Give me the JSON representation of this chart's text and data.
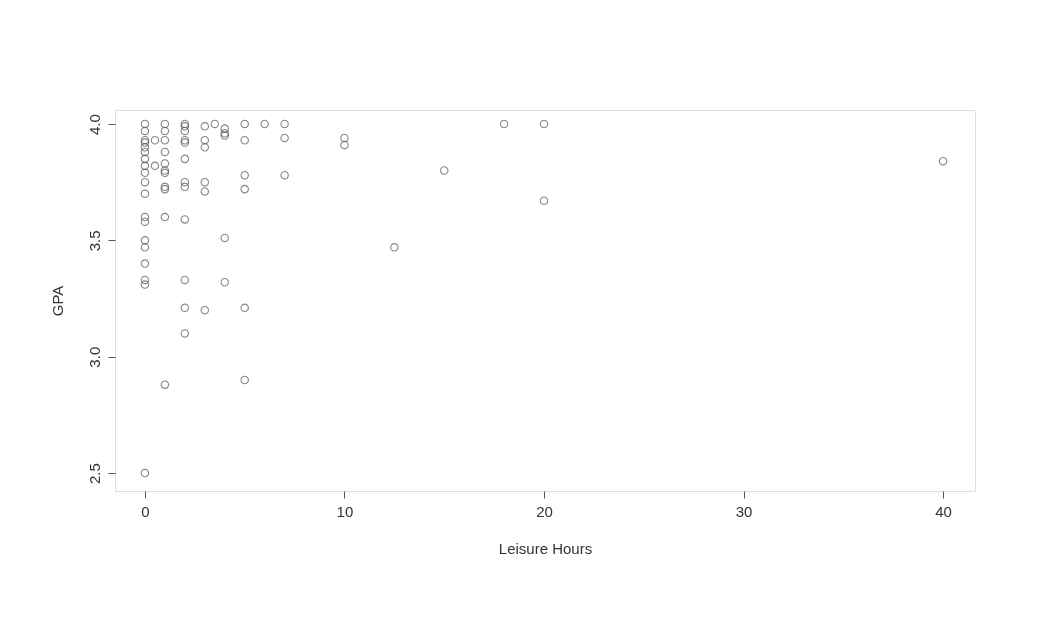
{
  "chart_data": {
    "type": "scatter",
    "xlabel": "Leisure Hours",
    "ylabel": "GPA",
    "marker": "circle",
    "grid": false,
    "legend": false,
    "xlim": [
      -1.5,
      41.6
    ],
    "ylim": [
      2.423,
      4.06
    ],
    "xticks": [
      0,
      10,
      20,
      30,
      40
    ],
    "yticks": [
      2.5,
      {
        "value": 3,
        "label": "3.0"
      },
      3.5,
      {
        "value": 4,
        "label": "4.0"
      }
    ],
    "series": [
      {
        "color": "#555555",
        "x": [
          0,
          0,
          0,
          0,
          0,
          0,
          0,
          0,
          0,
          0,
          0,
          0,
          0,
          0,
          0,
          0,
          0,
          0,
          0,
          0.5,
          0.5,
          1,
          1,
          1,
          1,
          1,
          1,
          1,
          1,
          1,
          1,
          1,
          2,
          2,
          2,
          2,
          2,
          2,
          2,
          2,
          2,
          2,
          2,
          2,
          3,
          3,
          3,
          3,
          3,
          3,
          3.5,
          4,
          4,
          4,
          4,
          4,
          5,
          5,
          5,
          5,
          5,
          5,
          6,
          7,
          7,
          7,
          10,
          10,
          12.5,
          15,
          18,
          20,
          20,
          40
        ],
        "values": [
          4.0,
          3.97,
          3.93,
          3.92,
          3.9,
          3.88,
          3.85,
          3.82,
          3.79,
          3.75,
          3.7,
          3.6,
          3.58,
          3.5,
          3.47,
          3.4,
          3.33,
          3.31,
          2.5,
          3.93,
          3.82,
          4.0,
          3.97,
          3.93,
          3.88,
          3.83,
          3.8,
          3.79,
          3.73,
          3.72,
          3.6,
          2.88,
          4.0,
          3.99,
          3.97,
          3.93,
          3.92,
          3.85,
          3.75,
          3.73,
          3.59,
          3.33,
          3.21,
          3.1,
          3.99,
          3.93,
          3.9,
          3.75,
          3.71,
          3.2,
          4.0,
          3.98,
          3.96,
          3.95,
          3.51,
          3.32,
          4.0,
          3.93,
          3.78,
          3.72,
          3.21,
          2.9,
          4.0,
          4.0,
          3.94,
          3.78,
          3.94,
          3.91,
          3.47,
          3.8,
          4.0,
          4.0,
          3.67,
          3.84
        ]
      }
    ]
  }
}
